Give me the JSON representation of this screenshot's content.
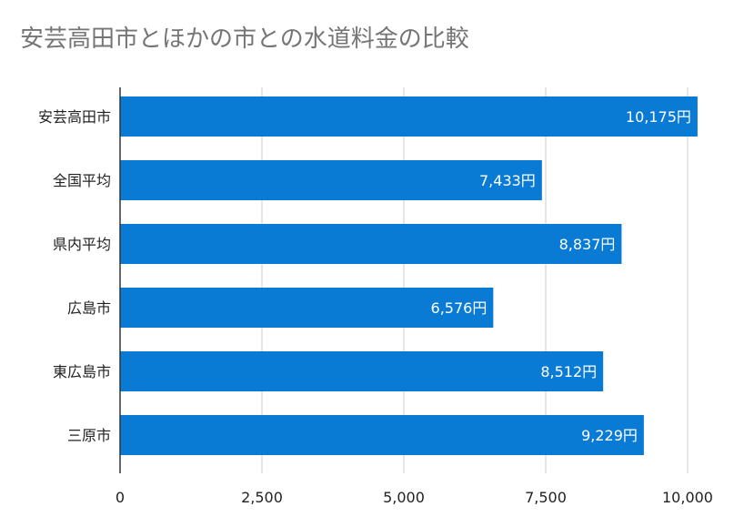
{
  "chart_data": {
    "type": "bar",
    "orientation": "horizontal",
    "title": "安芸高田市とほかの市との水道料金の比較",
    "categories": [
      "安芸高田市",
      "全国平均",
      "県内平均",
      "広島市",
      "東広島市",
      "三原市"
    ],
    "values": [
      10175,
      7433,
      8837,
      6576,
      8512,
      9229
    ],
    "data_labels": [
      "10,175円",
      "7,433円",
      "8,837円",
      "6,576円",
      "8,512円",
      "9,229円"
    ],
    "xlim": [
      0,
      10000
    ],
    "x_ticks": [
      0,
      2500,
      5000,
      7500,
      10000
    ],
    "x_tick_labels": [
      "0",
      "2,500",
      "5,000",
      "7,500",
      "10,000"
    ],
    "xlabel": "",
    "ylabel": "",
    "grid": true,
    "legend": "none",
    "bar_color": "#0a7bd4",
    "gridline_color": "#cccccc",
    "axis_color": "#333333"
  }
}
